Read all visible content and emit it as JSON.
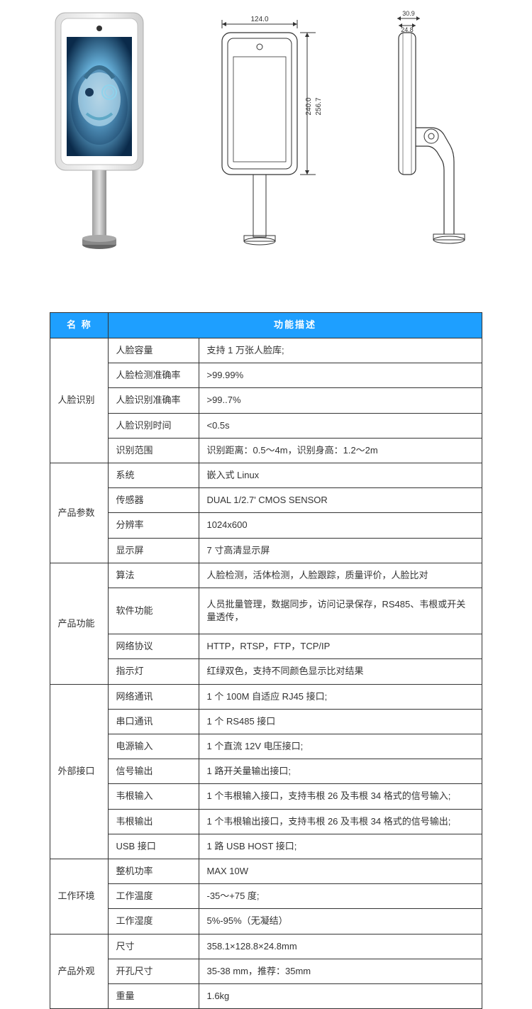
{
  "diagrams": {
    "front_width_label": "124.0",
    "front_height_inner_label": "240.0",
    "front_height_outer_label": "256.7",
    "side_depth_top_label": "30.9",
    "side_depth_inner_label": "24.8"
  },
  "table": {
    "header_name": "名 称",
    "header_desc": "功能描述",
    "header_bg": "#1e9fff",
    "header_fg": "#ffffff",
    "border_color": "#333333",
    "font_size": 13,
    "groups": [
      {
        "name": "人脸识别",
        "rows": [
          {
            "param": "人脸容量",
            "desc": "支持 1 万张人脸库;"
          },
          {
            "param": "人脸检测准确率",
            "desc": ">99.99%"
          },
          {
            "param": "人脸识别准确率",
            "desc": ">99..7%"
          },
          {
            "param": "人脸识别时间",
            "desc": "<0.5s"
          },
          {
            "param": "识别范围",
            "desc": "识别距离：0.5～4m，识别身高：1.2～2m"
          }
        ]
      },
      {
        "name": "产品参数",
        "rows": [
          {
            "param": "系统",
            "desc": "嵌入式 Linux"
          },
          {
            "param": "传感器",
            "desc": "DUAL 1/2.7'  CMOS SENSOR"
          },
          {
            "param": "分辨率",
            "desc": "1024x600"
          },
          {
            "param": "显示屏",
            "desc": "7 寸高清显示屏"
          }
        ]
      },
      {
        "name": "产品功能",
        "rows": [
          {
            "param": "算法",
            "desc": "人脸检测，活体检测，人脸跟踪，质量评价，人脸比对"
          },
          {
            "param": "软件功能",
            "desc": "人员批量管理，数据同步，访问记录保存，RS485、韦根或开关量透传，",
            "tall": true
          },
          {
            "param": "网络协议",
            "desc": "HTTP，RTSP，FTP，TCP/IP"
          },
          {
            "param": "指示灯",
            "desc": "红绿双色，支持不同颜色显示比对结果"
          }
        ]
      },
      {
        "name": "外部接口",
        "rows": [
          {
            "param": "网络通讯",
            "desc": "1 个 100M 自适应 RJ45 接口;"
          },
          {
            "param": "串口通讯",
            "desc": "1 个 RS485 接口"
          },
          {
            "param": "电源输入",
            "desc": "1 个直流 12V 电压接口;"
          },
          {
            "param": "信号输出",
            "desc": "1 路开关量输出接口;"
          },
          {
            "param": "韦根输入",
            "desc": "1 个韦根输入接口，支持韦根 26 及韦根 34 格式的信号输入;"
          },
          {
            "param": "韦根输出",
            "desc": "1 个韦根输出接口，支持韦根 26 及韦根 34 格式的信号输出;"
          },
          {
            "param": "USB 接口",
            "desc": "1 路 USB HOST 接口;"
          }
        ]
      },
      {
        "name": "工作环境",
        "rows": [
          {
            "param": "整机功率",
            "desc": "MAX 10W"
          },
          {
            "param": "工作温度",
            "desc": "-35～+75 度;"
          },
          {
            "param": "工作湿度",
            "desc": "5%-95%（无凝结）"
          }
        ]
      },
      {
        "name": "产品外观",
        "rows": [
          {
            "param": "尺寸",
            "desc": "358.1×128.8×24.8mm"
          },
          {
            "param": "开孔尺寸",
            "desc": "35-38 mm，推荐：35mm"
          },
          {
            "param": "重量",
            "desc": "1.6kg"
          }
        ]
      }
    ]
  }
}
